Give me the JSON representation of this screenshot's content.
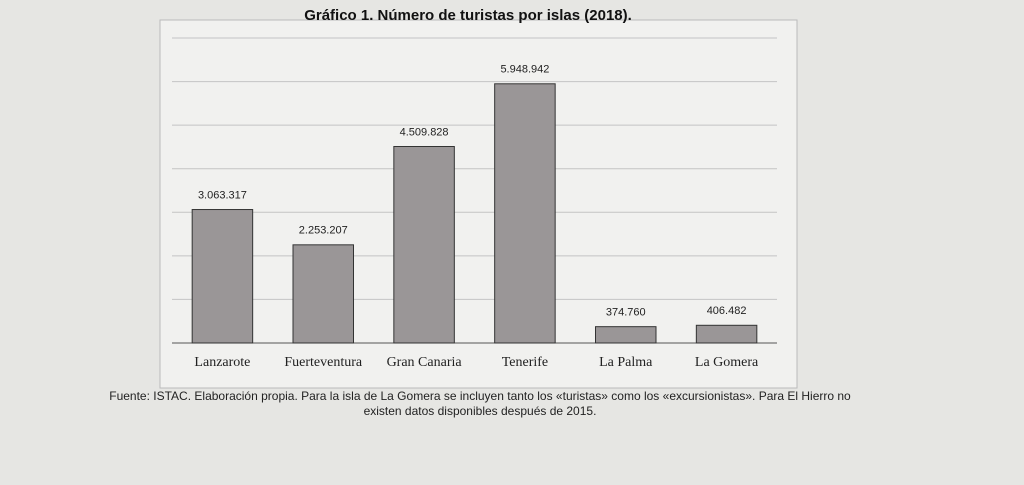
{
  "chart_data": {
    "type": "bar",
    "title": "Gráfico 1. Número de turistas por islas (2018).",
    "categories": [
      "Lanzarote",
      "Fuerteventura",
      "Gran Canaria",
      "Tenerife",
      "La Palma",
      "La Gomera"
    ],
    "values": [
      3063317,
      2253207,
      4509828,
      5948942,
      374760,
      406482
    ],
    "value_labels": [
      "3.063.317",
      "2.253.207",
      "4.509.828",
      "5.948.942",
      "374.760",
      "406.482"
    ],
    "color": "#9a9697",
    "ylim": [
      0,
      7000000
    ],
    "yticks": [
      0,
      1000000,
      2000000,
      3000000,
      4000000,
      5000000,
      6000000,
      7000000
    ],
    "grid": true,
    "note": "Fuente: ISTAC. Elaboración propia. Para la isla de La Gomera se incluyen tanto los «turistas» como los «excursionistas». Para El Hierro no existen datos disponibles después de 2015."
  }
}
